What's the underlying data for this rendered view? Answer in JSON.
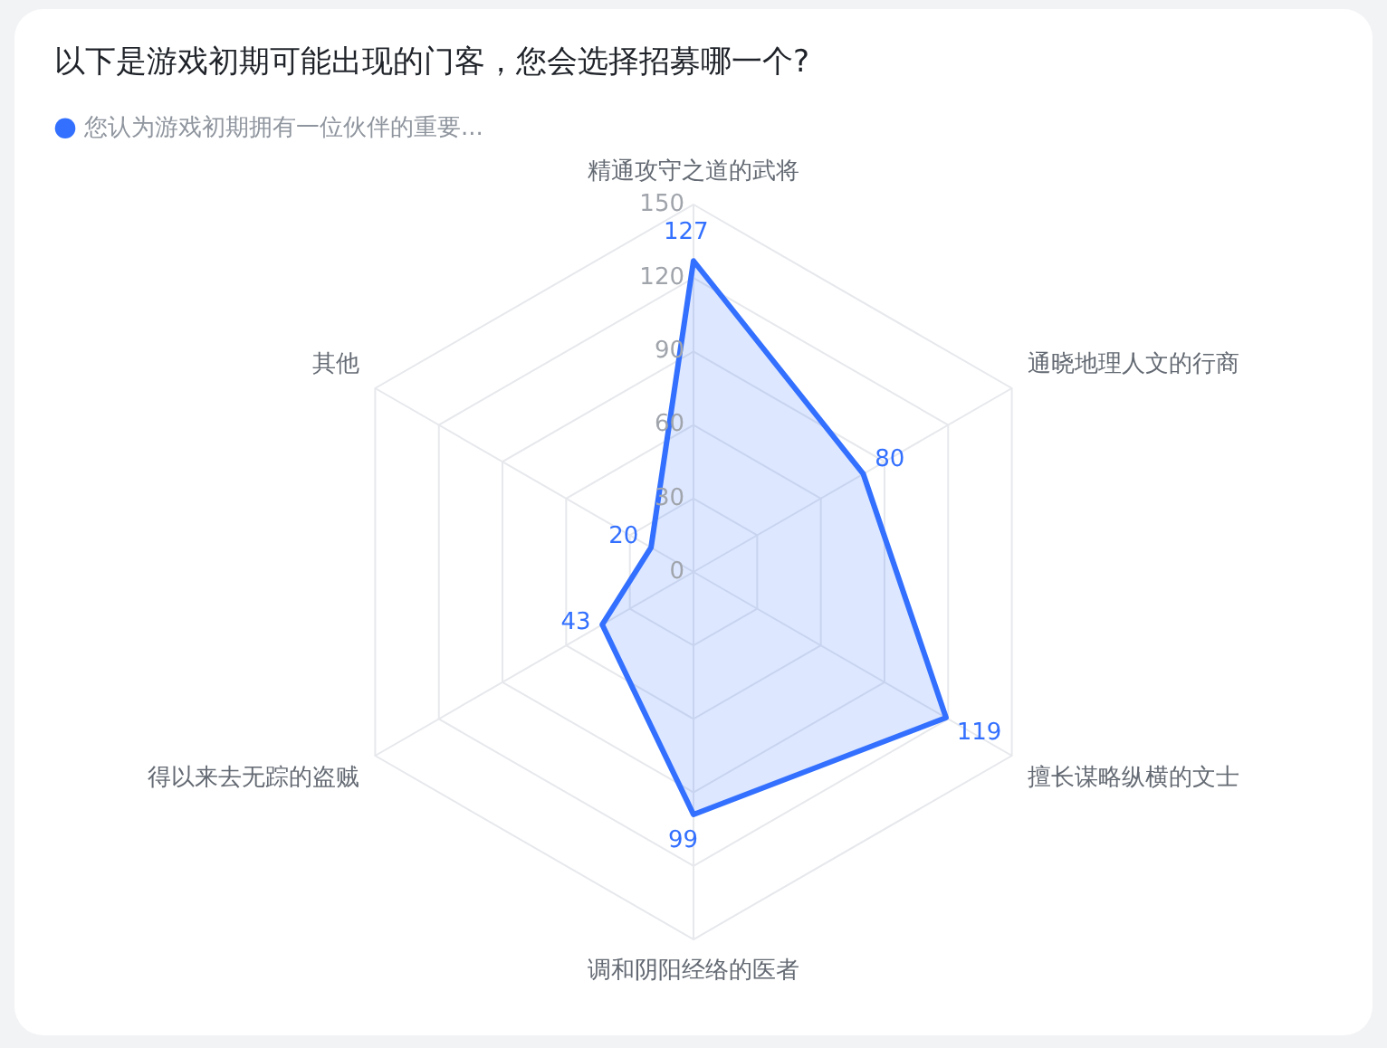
{
  "chart_data": {
    "type": "radar",
    "title": "以下是游戏初期可能出现的门客，您会选择招募哪一个?",
    "categories": [
      "精通攻守之道的武将",
      "通晓地理人文的行商",
      "擅长谋略纵横的文士",
      "调和阴阳经络的医者",
      "得以来去无踪的盗贼",
      "其他"
    ],
    "series": [
      {
        "name": "您认为游戏初期拥有一位伙伴的重要...",
        "color": "#3370ff",
        "values": [
          127,
          80,
          119,
          99,
          43,
          20
        ]
      }
    ],
    "ylim": [
      0,
      150
    ],
    "yticks": [
      0,
      30,
      60,
      90,
      120,
      150
    ],
    "grid": true,
    "legend": "top left",
    "marker": "none",
    "data_labels": true
  }
}
